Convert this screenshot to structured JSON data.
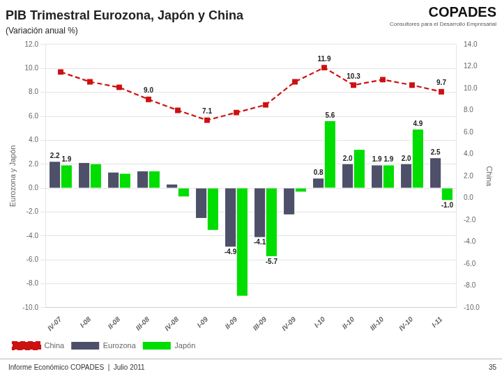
{
  "chart_data": {
    "type": "bar",
    "title": "PIB Trimestral Eurozona, Japón y China",
    "subtitle": "(Variación anual %)",
    "annotations": [
      "COPADES",
      "Consultores para el Desarrollo Empresarial",
      "Informe Económico COPADES  |  Julio 2011",
      "35"
    ],
    "categories": [
      "IV-07",
      "I-08",
      "II-08",
      "III-08",
      "IV-08",
      "I-09",
      "II-09",
      "III-09",
      "IV-09",
      "I-10",
      "II-10",
      "III-10",
      "IV-10",
      "I-11"
    ],
    "series": [
      {
        "name": "Eurozona",
        "color": "#4d5068",
        "values": [
          2.2,
          2.1,
          1.3,
          1.4,
          0.3,
          -2.5,
          -4.9,
          -4.1,
          -2.2,
          0.8,
          2.0,
          1.9,
          2.0,
          2.5
        ],
        "value_labels": [
          "2.2",
          null,
          null,
          null,
          null,
          null,
          "-4.9",
          "-4.1",
          null,
          "0.8",
          "2.0",
          "1.9",
          "2.0",
          "2.5"
        ]
      },
      {
        "name": "Japón",
        "color": "#00dd00",
        "values": [
          1.9,
          2.0,
          1.2,
          1.4,
          -0.7,
          -3.5,
          -9.0,
          -5.7,
          -0.3,
          5.6,
          3.2,
          1.9,
          4.9,
          -1.0
        ],
        "value_labels": [
          "1.9",
          null,
          null,
          null,
          null,
          null,
          null,
          "-5.7",
          null,
          "5.6",
          null,
          "1.9",
          "4.9",
          "-1.0"
        ]
      },
      {
        "name": "China",
        "color": "#cc1111",
        "type": "line",
        "axis": "y2",
        "marker": "square",
        "line_style": "dashed",
        "values": [
          11.5,
          10.6,
          10.1,
          9.0,
          8.0,
          7.1,
          7.8,
          8.5,
          10.6,
          11.9,
          10.3,
          10.8,
          10.3,
          9.7
        ],
        "value_labels": [
          null,
          null,
          null,
          "9.0",
          null,
          "7.1",
          null,
          null,
          null,
          "11.9",
          "10.3",
          null,
          null,
          "9.7"
        ]
      }
    ],
    "ylabel": "Eurozona y Japón",
    "y2label": "China",
    "ylim": [
      -10.0,
      12.0
    ],
    "yticks": [
      {
        "value": -10,
        "label": "-10.0"
      },
      {
        "value": -8,
        "label": "-8.0"
      },
      {
        "value": -6,
        "label": "-6.0"
      },
      {
        "value": -4,
        "label": "-4.0"
      },
      {
        "value": -2,
        "label": "-2.0"
      },
      {
        "value": 0,
        "label": "0.0"
      },
      {
        "value": 2,
        "label": "2.0"
      },
      {
        "value": 4,
        "label": "4.0"
      },
      {
        "value": 6,
        "label": "6.0"
      },
      {
        "value": 8,
        "label": "8.0"
      },
      {
        "value": 10,
        "label": "10.0"
      },
      {
        "value": 12,
        "label": "12.0"
      }
    ],
    "y2lim": [
      -10.0,
      14.0
    ],
    "y2ticks": [
      {
        "value": -10,
        "label": "-10.0"
      },
      {
        "value": -8,
        "label": "-8.0"
      },
      {
        "value": -6,
        "label": "-6.0"
      },
      {
        "value": -4,
        "label": "-4.0"
      },
      {
        "value": -2,
        "label": "-2.0"
      },
      {
        "value": 0,
        "label": "0.0"
      },
      {
        "value": 2,
        "label": "2.0"
      },
      {
        "value": 4,
        "label": "4.0"
      },
      {
        "value": 6,
        "label": "6.0"
      },
      {
        "value": 8,
        "label": "8.0"
      },
      {
        "value": 10,
        "label": "10.0"
      },
      {
        "value": 12,
        "label": "12.0"
      },
      {
        "value": 14,
        "label": "14.0"
      }
    ],
    "grid": true,
    "legend": "lower left"
  }
}
